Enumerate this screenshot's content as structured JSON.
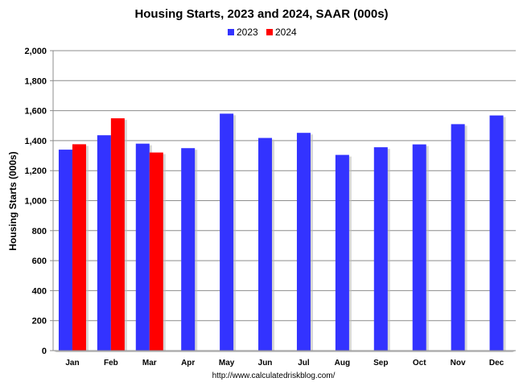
{
  "chart_data": {
    "type": "bar",
    "title": "Housing Starts,  2023 and 2024, SAAR (000s)",
    "ylabel": "Housing Starts (000s)",
    "xlabel": "",
    "source": "http://www.calculatedriskblog.com/",
    "categories": [
      "Jan",
      "Feb",
      "Mar",
      "Apr",
      "May",
      "Jun",
      "Jul",
      "Aug",
      "Sep",
      "Oct",
      "Nov",
      "Dec"
    ],
    "series": [
      {
        "name": "2023",
        "color": "#3333ff",
        "values": [
          1340,
          1436,
          1380,
          1350,
          1580,
          1418,
          1452,
          1305,
          1356,
          1375,
          1510,
          1568
        ]
      },
      {
        "name": "2024",
        "color": "#ff0000",
        "values": [
          1376,
          1549,
          1321,
          null,
          null,
          null,
          null,
          null,
          null,
          null,
          null,
          null
        ]
      }
    ],
    "ylim": [
      0,
      2000
    ],
    "yticks": [
      0,
      200,
      400,
      600,
      800,
      1000,
      1200,
      1400,
      1600,
      1800,
      2000
    ],
    "ytick_labels": [
      "0",
      "200",
      "400",
      "600",
      "800",
      "1,000",
      "1,200",
      "1,400",
      "1,600",
      "1,800",
      "2,000"
    ],
    "grid": true,
    "legend": "top-center"
  }
}
